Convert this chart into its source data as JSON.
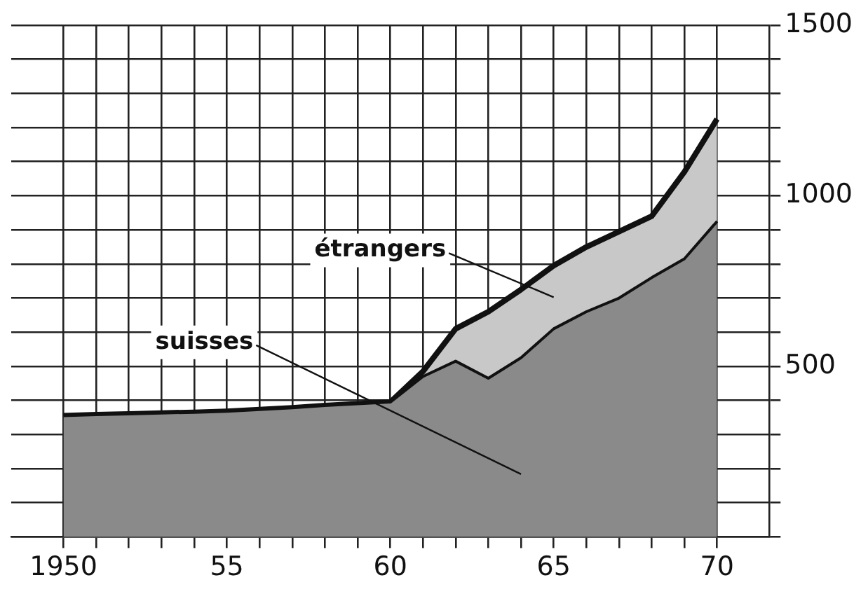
{
  "chart_data": {
    "type": "area",
    "stacked": true,
    "x": [
      1950,
      1951,
      1952,
      1953,
      1954,
      1955,
      1956,
      1957,
      1958,
      1959,
      1960,
      1961,
      1962,
      1963,
      1964,
      1965,
      1966,
      1967,
      1968,
      1969,
      1970
    ],
    "series": [
      {
        "name": "suisses",
        "color": "#8a8a8a",
        "values": [
          355,
          358,
          360,
          363,
          365,
          368,
          373,
          378,
          385,
          390,
          395,
          470,
          515,
          465,
          525,
          610,
          660,
          700,
          760,
          815,
          925
        ]
      },
      {
        "name": "étrangers",
        "color": "#c8c8c8",
        "values": [
          0,
          0,
          0,
          0,
          0,
          0,
          0,
          0,
          0,
          0,
          0,
          15,
          95,
          195,
          200,
          185,
          190,
          195,
          180,
          255,
          300
        ]
      }
    ],
    "xlim": [
      1948.4,
      1971.6
    ],
    "xticks": [
      1950,
      {
        "value": 1951,
        "label": null
      },
      {
        "value": 1952,
        "label": null
      },
      {
        "value": 1953,
        "label": null
      },
      {
        "value": 1954,
        "label": null
      },
      {
        "value": 1955,
        "label": "55"
      },
      {
        "value": 1956,
        "label": null
      },
      {
        "value": 1957,
        "label": null
      },
      {
        "value": 1958,
        "label": null
      },
      {
        "value": 1959,
        "label": null
      },
      {
        "value": 1960,
        "label": "60"
      },
      {
        "value": 1961,
        "label": null
      },
      {
        "value": 1962,
        "label": null
      },
      {
        "value": 1963,
        "label": null
      },
      {
        "value": 1964,
        "label": null
      },
      {
        "value": 1965,
        "label": "65"
      },
      {
        "value": 1966,
        "label": null
      },
      {
        "value": 1967,
        "label": null
      },
      {
        "value": 1968,
        "label": null
      },
      {
        "value": 1969,
        "label": null
      },
      {
        "value": 1970,
        "label": "70"
      }
    ],
    "ylim": [
      0,
      1500
    ],
    "yticks": [
      {
        "value": 0,
        "label": null
      },
      {
        "value": 100,
        "label": null
      },
      {
        "value": 200,
        "label": null
      },
      {
        "value": 300,
        "label": null
      },
      {
        "value": 400,
        "label": null
      },
      500,
      {
        "value": 600,
        "label": null
      },
      {
        "value": 700,
        "label": null
      },
      {
        "value": 800,
        "label": null
      },
      {
        "value": 900,
        "label": null
      },
      1000,
      {
        "value": 1100,
        "label": null
      },
      {
        "value": 1200,
        "label": null
      },
      {
        "value": 1300,
        "label": null
      },
      {
        "value": 1400,
        "label": null
      },
      1500
    ],
    "grid": true,
    "legend": false
  }
}
